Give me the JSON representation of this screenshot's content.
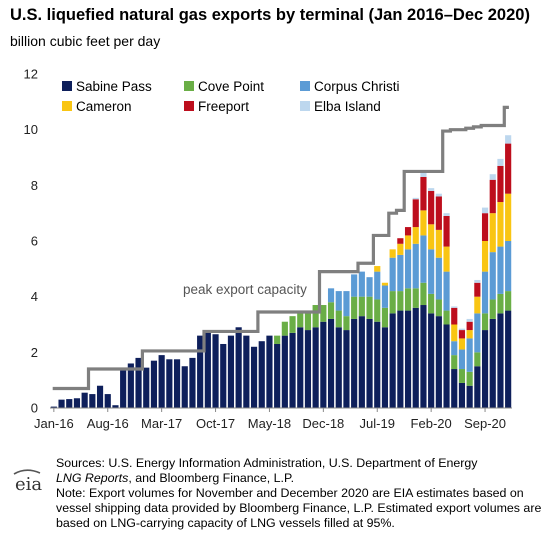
{
  "title": "U.S. liquefied natural gas exports by terminal (Jan 2016–Dec 2020)",
  "subtitle": "billion cubic feet per day",
  "notes": {
    "sources_line1": "Sources: U.S. Energy Information Administration, U.S. Department of Energy",
    "sources_publication": "LNG Reports",
    "sources_line2_rest": ", and Bloomberg Finance, L.P.",
    "note": "Note: Export volumes for November and December 2020 are EIA estimates based on vessel shipping data provided by Bloomberg Finance, L.P. Estimated export volumes are based on LNG-carrying capacity of LNG vessels filled at 95%."
  },
  "logo": {
    "text": "eia"
  },
  "chart_data": {
    "type": "bar",
    "stacked": true,
    "title": "U.S. liquefied natural gas exports by terminal (Jan 2016–Dec 2020)",
    "ylabel": "billion cubic feet per day",
    "ylim": [
      0,
      12
    ],
    "yticks": [
      0,
      2,
      4,
      6,
      8,
      10,
      12
    ],
    "grid": false,
    "legend_position": "top-left",
    "x_tick_labels": [
      {
        "index": 0,
        "label": "Jan-16"
      },
      {
        "index": 7,
        "label": "Aug-16"
      },
      {
        "index": 14,
        "label": "Mar-17"
      },
      {
        "index": 21,
        "label": "Oct-17"
      },
      {
        "index": 28,
        "label": "May-18"
      },
      {
        "index": 35,
        "label": "Dec-18"
      },
      {
        "index": 42,
        "label": "Jul-19"
      },
      {
        "index": 49,
        "label": "Feb-20"
      },
      {
        "index": 56,
        "label": "Sep-20"
      }
    ],
    "categories": [
      "Jan-16",
      "Feb-16",
      "Mar-16",
      "Apr-16",
      "May-16",
      "Jun-16",
      "Jul-16",
      "Aug-16",
      "Sep-16",
      "Oct-16",
      "Nov-16",
      "Dec-16",
      "Jan-17",
      "Feb-17",
      "Mar-17",
      "Apr-17",
      "May-17",
      "Jun-17",
      "Jul-17",
      "Aug-17",
      "Sep-17",
      "Oct-17",
      "Nov-17",
      "Dec-17",
      "Jan-18",
      "Feb-18",
      "Mar-18",
      "Apr-18",
      "May-18",
      "Jun-18",
      "Jul-18",
      "Aug-18",
      "Sep-18",
      "Oct-18",
      "Nov-18",
      "Dec-18",
      "Jan-19",
      "Feb-19",
      "Mar-19",
      "Apr-19",
      "May-19",
      "Jun-19",
      "Jul-19",
      "Aug-19",
      "Sep-19",
      "Oct-19",
      "Nov-19",
      "Dec-19",
      "Jan-20",
      "Feb-20",
      "Mar-20",
      "Apr-20",
      "May-20",
      "Jun-20",
      "Jul-20",
      "Aug-20",
      "Sep-20",
      "Oct-20",
      "Nov-20",
      "Dec-20"
    ],
    "series": [
      {
        "name": "Sabine Pass",
        "color": "#0e1f5b",
        "values": [
          0.05,
          0.3,
          0.32,
          0.35,
          0.55,
          0.5,
          0.8,
          0.5,
          0.1,
          1.35,
          1.6,
          1.8,
          1.45,
          1.7,
          1.9,
          1.75,
          1.75,
          1.5,
          1.8,
          2.6,
          2.7,
          2.65,
          2.3,
          2.6,
          2.9,
          2.6,
          2.2,
          2.4,
          2.6,
          2.3,
          2.6,
          2.7,
          2.9,
          2.8,
          2.9,
          3.1,
          3.2,
          2.9,
          2.8,
          3.2,
          3.3,
          3.2,
          3.1,
          2.9,
          3.4,
          3.5,
          3.5,
          3.6,
          3.7,
          3.4,
          3.3,
          3.0,
          1.4,
          0.9,
          0.8,
          1.5,
          2.8,
          3.2,
          3.4,
          3.5
        ]
      },
      {
        "name": "Cove Point",
        "color": "#6aae46",
        "values": [
          0,
          0,
          0,
          0,
          0,
          0,
          0,
          0,
          0,
          0,
          0,
          0,
          0,
          0,
          0,
          0,
          0,
          0,
          0,
          0,
          0,
          0,
          0,
          0,
          0,
          0,
          0,
          0,
          0,
          0.3,
          0.5,
          0.6,
          0.5,
          0.7,
          0.8,
          0.6,
          0.6,
          0.6,
          0.5,
          0.8,
          0.7,
          0.8,
          0.8,
          0.7,
          0.8,
          0.7,
          0.8,
          0.7,
          0.8,
          0.7,
          0.6,
          0.5,
          0.5,
          0.5,
          0.5,
          0.5,
          0.6,
          0.7,
          0.7,
          0.7
        ]
      },
      {
        "name": "Corpus Christi",
        "color": "#5b9bd5",
        "values": [
          0,
          0,
          0,
          0,
          0,
          0,
          0,
          0,
          0,
          0,
          0,
          0,
          0,
          0,
          0,
          0,
          0,
          0,
          0,
          0,
          0,
          0,
          0,
          0,
          0,
          0,
          0,
          0,
          0,
          0,
          0,
          0,
          0,
          0,
          0,
          0,
          0.5,
          0.7,
          0.9,
          0.8,
          0.9,
          0.7,
          1.0,
          0.8,
          1.2,
          1.3,
          1.4,
          1.6,
          1.7,
          1.6,
          1.5,
          1.4,
          0.5,
          0.7,
          1.2,
          1.4,
          1.5,
          1.7,
          1.7,
          1.8
        ]
      },
      {
        "name": "Cameron",
        "color": "#f9c513",
        "values": [
          0,
          0,
          0,
          0,
          0,
          0,
          0,
          0,
          0,
          0,
          0,
          0,
          0,
          0,
          0,
          0,
          0,
          0,
          0,
          0,
          0,
          0,
          0,
          0,
          0,
          0,
          0,
          0,
          0,
          0,
          0,
          0,
          0,
          0,
          0,
          0,
          0,
          0,
          0,
          0,
          0,
          0,
          0.2,
          0.1,
          0.3,
          0.4,
          0.5,
          0.6,
          0.9,
          0.9,
          1.0,
          0.9,
          0.6,
          0.4,
          0.3,
          0.6,
          1.1,
          1.4,
          1.6,
          1.7
        ]
      },
      {
        "name": "Freeport",
        "color": "#bd0e1d",
        "values": [
          0,
          0,
          0,
          0,
          0,
          0,
          0,
          0,
          0,
          0,
          0,
          0,
          0,
          0,
          0,
          0,
          0,
          0,
          0,
          0,
          0,
          0,
          0,
          0,
          0,
          0,
          0,
          0,
          0,
          0,
          0,
          0,
          0,
          0,
          0,
          0,
          0,
          0,
          0,
          0,
          0,
          0,
          0,
          0,
          0,
          0.2,
          0.3,
          1.0,
          1.2,
          1.2,
          1.2,
          1.1,
          0.6,
          0.3,
          0.3,
          0.5,
          1.0,
          1.2,
          1.3,
          1.8
        ]
      },
      {
        "name": "Elba Island",
        "color": "#bdd7ee",
        "values": [
          0,
          0,
          0,
          0,
          0,
          0,
          0,
          0,
          0,
          0,
          0,
          0,
          0,
          0,
          0,
          0,
          0,
          0,
          0,
          0,
          0,
          0,
          0,
          0,
          0,
          0,
          0,
          0,
          0,
          0,
          0,
          0,
          0,
          0,
          0,
          0,
          0,
          0,
          0,
          0,
          0,
          0,
          0,
          0,
          0,
          0,
          0,
          0.05,
          0.15,
          0.1,
          0.1,
          0.1,
          0.05,
          0.05,
          0.1,
          0.1,
          0.2,
          0.2,
          0.25,
          0.3
        ]
      }
    ],
    "capacity_line": {
      "name": "peak export capacity",
      "color": "#7f7f7f",
      "values": [
        0.7,
        0.7,
        0.7,
        0.7,
        0.7,
        1.4,
        1.4,
        1.4,
        1.4,
        1.4,
        1.4,
        1.4,
        2.05,
        2.05,
        2.05,
        2.05,
        2.05,
        2.05,
        2.05,
        2.05,
        2.75,
        2.75,
        2.75,
        2.75,
        2.75,
        2.75,
        2.75,
        3.45,
        3.45,
        3.45,
        3.45,
        3.45,
        3.45,
        3.45,
        3.45,
        4.9,
        4.9,
        4.9,
        4.9,
        4.9,
        5.2,
        5.2,
        6.2,
        6.2,
        7.0,
        7.1,
        8.5,
        8.5,
        8.5,
        8.5,
        8.5,
        9.95,
        10.0,
        10.0,
        10.05,
        10.1,
        10.15,
        10.15,
        10.15,
        10.8
      ]
    },
    "annotation": {
      "text": "peak export capacity"
    }
  }
}
